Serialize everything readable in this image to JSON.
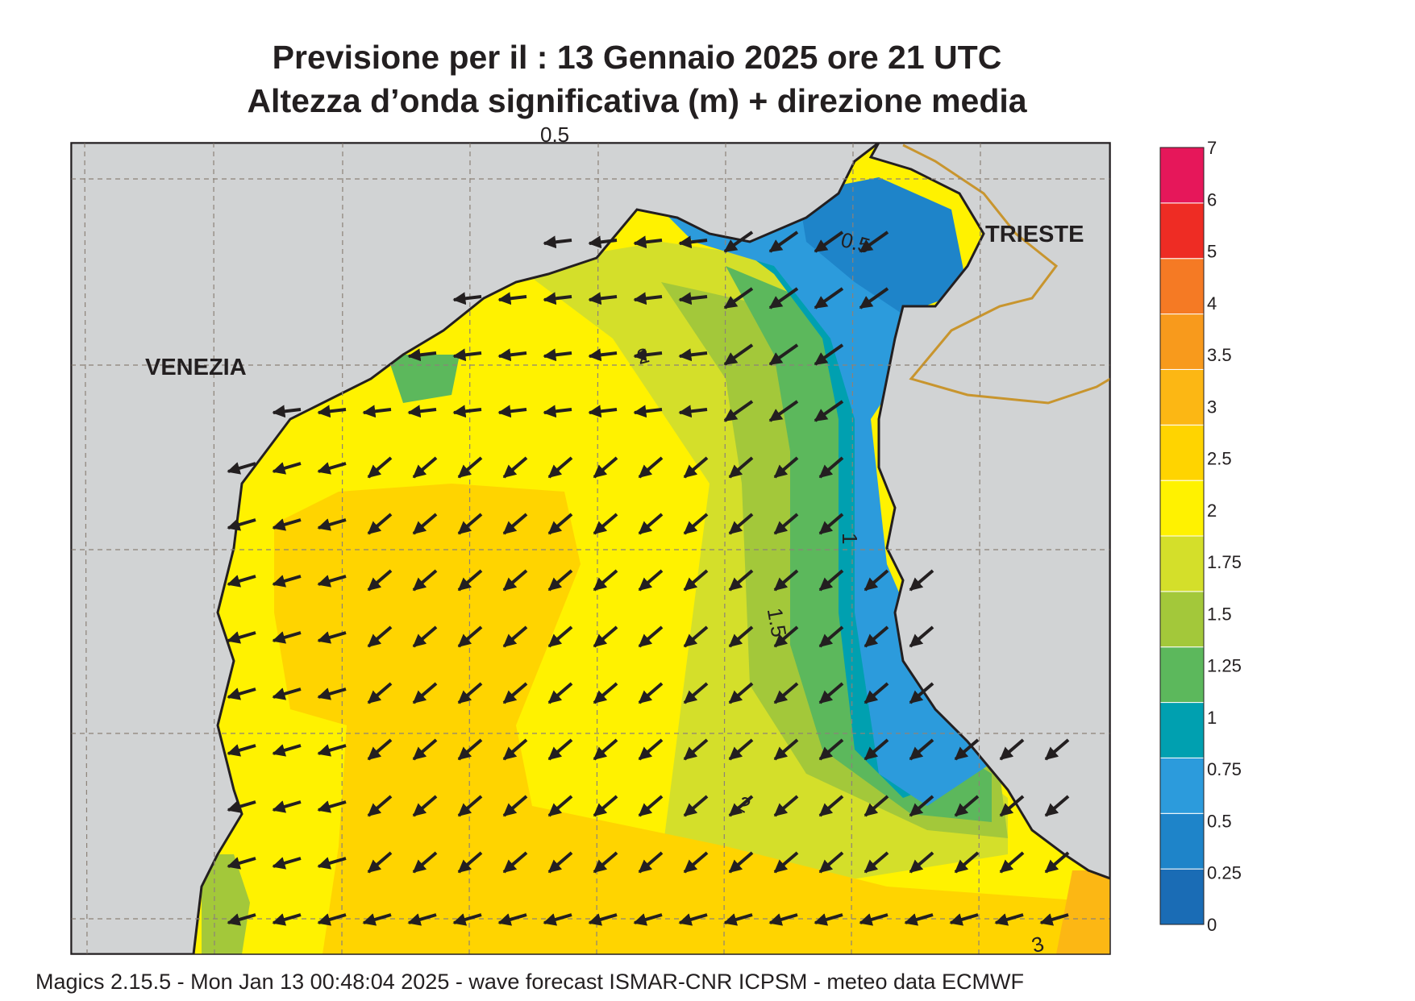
{
  "header": {
    "title_line1": "Previsione per il  :  13  Gennaio  2025   ore 21 UTC",
    "title_line2": "Altezza d’onda significativa (m) + direzione media"
  },
  "footer": {
    "credits": "Magics 2.15.5 - Mon Jan 13 00:48:04 2025 - wave forecast  ISMAR-CNR  ICPSM - meteo data   ECMWF"
  },
  "map": {
    "cities": [
      "VENEZIA",
      "TRIESTE"
    ],
    "contour_labels": [
      "0.5",
      "2",
      "1",
      "1.5",
      "2",
      "3",
      "0.5"
    ],
    "arrow_direction": "towards southwest / west",
    "colors": {
      "land": "#d1d3d4",
      "coast": "#231f20",
      "border": "#c8952e",
      "grid": "#8c8278"
    }
  },
  "legend": {
    "unit": "m",
    "ticks": [
      "0",
      "0.25",
      "0.5",
      "0.75",
      "1",
      "1.25",
      "1.5",
      "1.75",
      "2",
      "2.5",
      "3",
      "3.5",
      "4",
      "5",
      "6",
      "7"
    ],
    "colors": [
      "#1a6cb5",
      "#1e84c9",
      "#2c9bdc",
      "#00a0b0",
      "#5cb85c",
      "#a3c83a",
      "#d4df2a",
      "#fff200",
      "#ffd400",
      "#fcb714",
      "#f89a1c",
      "#f57a24",
      "#ee2c24",
      "#e6175a"
    ]
  }
}
